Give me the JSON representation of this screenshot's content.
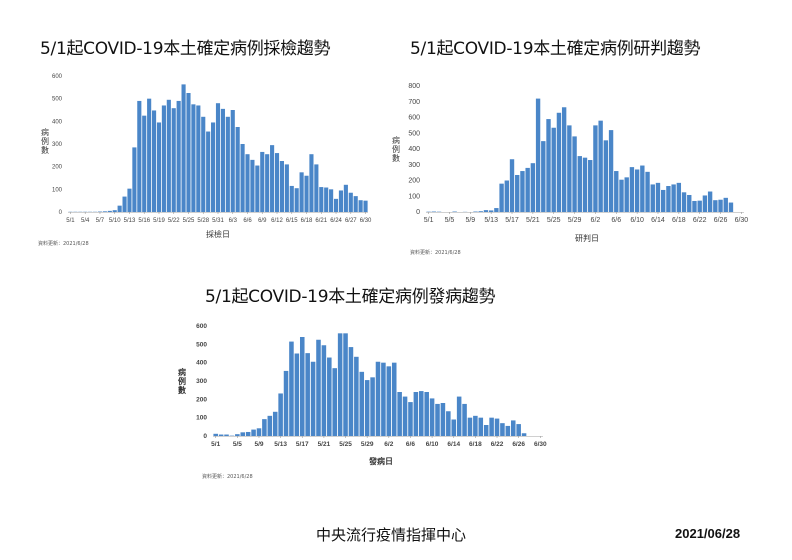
{
  "footer": {
    "organization": "中央流行疫情指揮中心",
    "date": "2021/06/28"
  },
  "colors": {
    "bar": "#4a86c8",
    "axis": "#d0d0d0",
    "text": "#444444"
  },
  "chart_data": [
    {
      "id": "sampling",
      "type": "bar",
      "title": "5/1起COVID-19本土確定病例採檢趨勢",
      "xlabel": "採檢日",
      "ylabel": "病例數",
      "update_note": "資料更新：2021/6/28",
      "ylim": [
        0,
        600
      ],
      "yticks": [
        0,
        100,
        200,
        300,
        400,
        500,
        600
      ],
      "xtick_labels": [
        "5/1",
        "5/4",
        "5/7",
        "5/10",
        "5/13",
        "5/16",
        "5/19",
        "5/22",
        "5/25",
        "5/28",
        "5/31",
        "6/3",
        "6/6",
        "6/9",
        "6/12",
        "6/15",
        "6/18",
        "6/21",
        "6/24",
        "6/27",
        "6/30"
      ],
      "categories": [
        "5/1",
        "5/2",
        "5/3",
        "5/4",
        "5/5",
        "5/6",
        "5/7",
        "5/8",
        "5/9",
        "5/10",
        "5/11",
        "5/12",
        "5/13",
        "5/14",
        "5/15",
        "5/16",
        "5/17",
        "5/18",
        "5/19",
        "5/20",
        "5/21",
        "5/22",
        "5/23",
        "5/24",
        "5/25",
        "5/26",
        "5/27",
        "5/28",
        "5/29",
        "5/30",
        "5/31",
        "6/1",
        "6/2",
        "6/3",
        "6/4",
        "6/5",
        "6/6",
        "6/7",
        "6/8",
        "6/9",
        "6/10",
        "6/11",
        "6/12",
        "6/13",
        "6/14",
        "6/15",
        "6/16",
        "6/17",
        "6/18",
        "6/19",
        "6/20",
        "6/21",
        "6/22",
        "6/23",
        "6/24",
        "6/25",
        "6/26",
        "6/27",
        "6/28",
        "6/29",
        "6/30"
      ],
      "values": [
        1,
        1,
        1,
        1,
        1,
        1,
        2,
        3,
        5,
        8,
        28,
        68,
        103,
        285,
        490,
        425,
        500,
        448,
        395,
        470,
        495,
        458,
        490,
        563,
        525,
        475,
        470,
        420,
        355,
        395,
        480,
        455,
        420,
        450,
        375,
        300,
        255,
        230,
        205,
        265,
        255,
        295,
        260,
        225,
        210,
        115,
        105,
        175,
        160,
        255,
        210,
        110,
        108,
        100,
        58,
        95,
        120,
        85,
        70,
        52,
        50
      ],
      "values_note": "estimated"
    },
    {
      "id": "confirmed",
      "type": "bar",
      "title": "5/1起COVID-19本土確定病例研判趨勢",
      "xlabel": "研判日",
      "ylabel": "病例數",
      "update_note": "資料更新：2021/6/28",
      "ylim": [
        0,
        800
      ],
      "yticks": [
        0,
        100,
        200,
        300,
        400,
        500,
        600,
        700,
        800
      ],
      "xtick_labels": [
        "5/1",
        "5/5",
        "5/9",
        "5/13",
        "5/17",
        "5/21",
        "5/25",
        "5/29",
        "6/2",
        "6/6",
        "6/10",
        "6/14",
        "6/18",
        "6/22",
        "6/26",
        "6/30"
      ],
      "categories": [
        "5/1",
        "5/2",
        "5/3",
        "5/4",
        "5/5",
        "5/6",
        "5/7",
        "5/8",
        "5/9",
        "5/10",
        "5/11",
        "5/12",
        "5/13",
        "5/14",
        "5/15",
        "5/16",
        "5/17",
        "5/18",
        "5/19",
        "5/20",
        "5/21",
        "5/22",
        "5/23",
        "5/24",
        "5/25",
        "5/26",
        "5/27",
        "5/28",
        "5/29",
        "5/30",
        "5/31",
        "6/1",
        "6/2",
        "6/3",
        "6/4",
        "6/5",
        "6/6",
        "6/7",
        "6/8",
        "6/9",
        "6/10",
        "6/11",
        "6/12",
        "6/13",
        "6/14",
        "6/15",
        "6/16",
        "6/17",
        "6/18",
        "6/19",
        "6/20",
        "6/21",
        "6/22",
        "6/23",
        "6/24",
        "6/25",
        "6/26",
        "6/27",
        "6/28"
      ],
      "values": [
        2,
        3,
        2,
        0,
        0,
        3,
        0,
        1,
        0,
        3,
        5,
        12,
        10,
        25,
        180,
        200,
        335,
        235,
        260,
        280,
        310,
        720,
        450,
        590,
        535,
        630,
        665,
        550,
        480,
        355,
        345,
        330,
        550,
        580,
        455,
        520,
        260,
        205,
        220,
        285,
        270,
        295,
        255,
        175,
        185,
        140,
        165,
        175,
        185,
        125,
        108,
        70,
        72,
        105,
        130,
        75,
        78,
        90,
        60
      ],
      "values_note": "estimated"
    },
    {
      "id": "onset",
      "type": "bar",
      "title": "5/1起COVID-19本土確定病例發病趨勢",
      "xlabel": "發病日",
      "ylabel": "病例數",
      "update_note": "資料更新：2021/6/28",
      "ylim": [
        0,
        600
      ],
      "yticks": [
        0,
        100,
        200,
        300,
        400,
        500,
        600
      ],
      "xtick_labels": [
        "5/1",
        "5/5",
        "5/9",
        "5/13",
        "5/17",
        "5/21",
        "5/25",
        "5/29",
        "6/2",
        "6/6",
        "6/10",
        "6/14",
        "6/18",
        "6/22",
        "6/26",
        "6/30"
      ],
      "categories": [
        "5/1",
        "5/2",
        "5/3",
        "5/4",
        "5/5",
        "5/6",
        "5/7",
        "5/8",
        "5/9",
        "5/10",
        "5/11",
        "5/12",
        "5/13",
        "5/14",
        "5/15",
        "5/16",
        "5/17",
        "5/18",
        "5/19",
        "5/20",
        "5/21",
        "5/22",
        "5/23",
        "5/24",
        "5/25",
        "5/26",
        "5/27",
        "5/28",
        "5/29",
        "5/30",
        "5/31",
        "6/1",
        "6/2",
        "6/3",
        "6/4",
        "6/5",
        "6/6",
        "6/7",
        "6/8",
        "6/9",
        "6/10",
        "6/11",
        "6/12",
        "6/13",
        "6/14",
        "6/15",
        "6/16",
        "6/17",
        "6/18",
        "6/19",
        "6/20",
        "6/21",
        "6/22",
        "6/23",
        "6/24",
        "6/25",
        "6/26",
        "6/27",
        "6/28"
      ],
      "values": [
        12,
        8,
        8,
        2,
        10,
        20,
        22,
        35,
        42,
        92,
        110,
        132,
        232,
        355,
        515,
        450,
        540,
        452,
        405,
        525,
        495,
        428,
        370,
        560,
        560,
        485,
        432,
        350,
        305,
        320,
        405,
        400,
        380,
        400,
        240,
        215,
        185,
        240,
        245,
        240,
        205,
        175,
        180,
        135,
        90,
        215,
        175,
        100,
        110,
        100,
        60,
        100,
        95,
        70,
        55,
        85,
        65,
        15,
        0
      ],
      "values_note": "estimated"
    }
  ]
}
